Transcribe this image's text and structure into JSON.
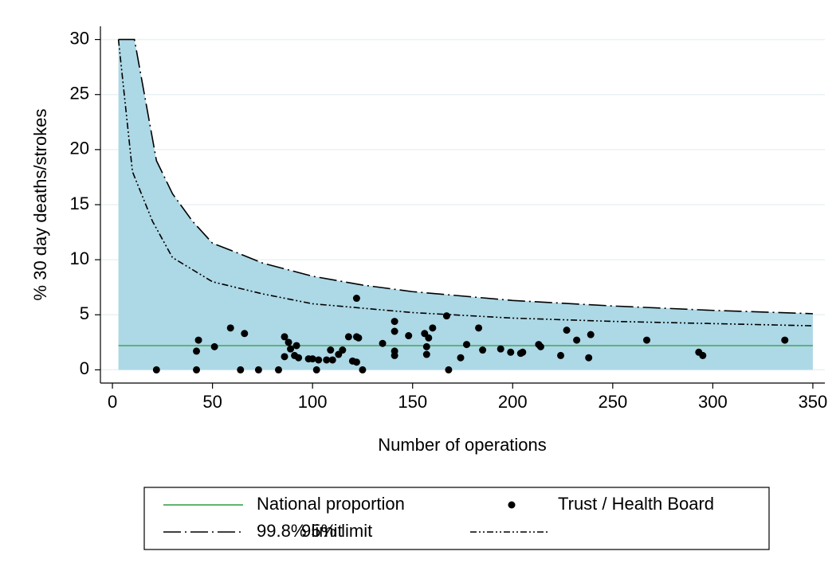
{
  "chart_data": {
    "type": "funnel",
    "x_label": "Number of operations",
    "y_label": "% 30 day deaths/strokes",
    "xlim": [
      -6,
      356
    ],
    "ylim": [
      -1.2,
      31.2
    ],
    "xticks": [
      0,
      50,
      100,
      150,
      200,
      250,
      300,
      350
    ],
    "yticks": [
      0,
      5,
      10,
      15,
      20,
      25,
      30
    ],
    "grid": true,
    "grid_color": "#eaf2f3",
    "legend": "bottom",
    "area_color": "#add8e6",
    "series": [
      {
        "name": "National proportion",
        "kind": "line",
        "line_style": "solid",
        "color": "#2e9a3e",
        "x": [
          3,
          350
        ],
        "values": [
          2.2,
          2.2
        ]
      },
      {
        "name": "Trust / Health Board",
        "kind": "scatter",
        "color": "#000000",
        "x": [
          22,
          42,
          42,
          43,
          51,
          59,
          64,
          66,
          73,
          83,
          86,
          86,
          88,
          89,
          91,
          92,
          93,
          98,
          100,
          102,
          103,
          107,
          109,
          110,
          113,
          115,
          118,
          120,
          122,
          122,
          123,
          122,
          125,
          135,
          141,
          141,
          141,
          141,
          148,
          156,
          157,
          157,
          158,
          160,
          167,
          168,
          174,
          177,
          183,
          185,
          194,
          199,
          204,
          205,
          213,
          214,
          224,
          227,
          232,
          238,
          239,
          267,
          293,
          295,
          336
        ],
        "values": [
          0,
          0,
          1.7,
          2.7,
          2.1,
          3.8,
          0,
          3.3,
          0,
          0,
          3.0,
          1.2,
          2.5,
          1.9,
          1.3,
          2.2,
          1.1,
          1.0,
          1.0,
          0,
          0.9,
          0.9,
          1.8,
          0.9,
          1.4,
          1.8,
          3.0,
          0.8,
          0.7,
          3.0,
          2.9,
          6.5,
          0,
          2.4,
          1.7,
          1.3,
          3.5,
          4.4,
          3.1,
          3.3,
          1.4,
          2.1,
          2.9,
          3.8,
          4.9,
          0,
          1.1,
          2.3,
          3.8,
          1.8,
          1.9,
          1.6,
          1.5,
          1.6,
          2.3,
          2.1,
          1.3,
          3.6,
          2.7,
          1.1,
          3.2,
          2.7,
          1.6,
          1.3,
          2.7
        ]
      },
      {
        "name": "99.8% limit",
        "kind": "line",
        "line_style": "long-dash-dot",
        "color": "#000000",
        "shaded": true,
        "x": [
          3,
          11,
          22,
          30,
          40,
          50,
          60,
          75,
          100,
          125,
          150,
          175,
          200,
          250,
          300,
          350
        ],
        "values": [
          30,
          30,
          19,
          16,
          13.5,
          11.5,
          10.8,
          9.7,
          8.5,
          7.7,
          7.1,
          6.7,
          6.3,
          5.8,
          5.4,
          5.1
        ]
      },
      {
        "name": "95% limit",
        "kind": "line",
        "line_style": "dash-dot-dot",
        "color": "#000000",
        "x": [
          3,
          10,
          20,
          30,
          50,
          75,
          100,
          150,
          200,
          250,
          300,
          350
        ],
        "values": [
          30,
          18,
          13.5,
          10.2,
          8.0,
          6.9,
          6.0,
          5.2,
          4.7,
          4.4,
          4.2,
          4.0
        ]
      }
    ]
  }
}
